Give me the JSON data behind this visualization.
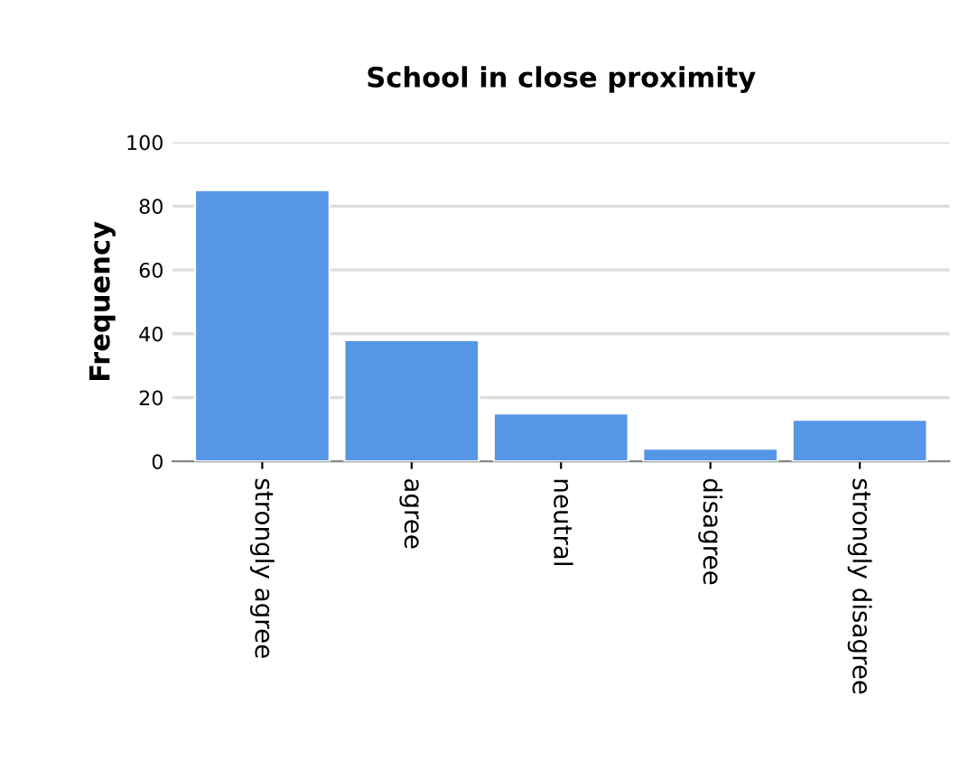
{
  "chart_data": {
    "type": "bar",
    "title": "School in close proximity",
    "ylabel": "Frequency",
    "categories": [
      "strongly agree",
      "agree",
      "neutral",
      "disagree",
      "strongly disagree"
    ],
    "values": [
      85,
      38,
      15,
      4,
      13
    ],
    "color": "#5596e6",
    "ylim": [
      0,
      100
    ],
    "yticks": [
      0,
      20,
      40,
      60,
      80,
      100
    ],
    "grid": "y"
  }
}
